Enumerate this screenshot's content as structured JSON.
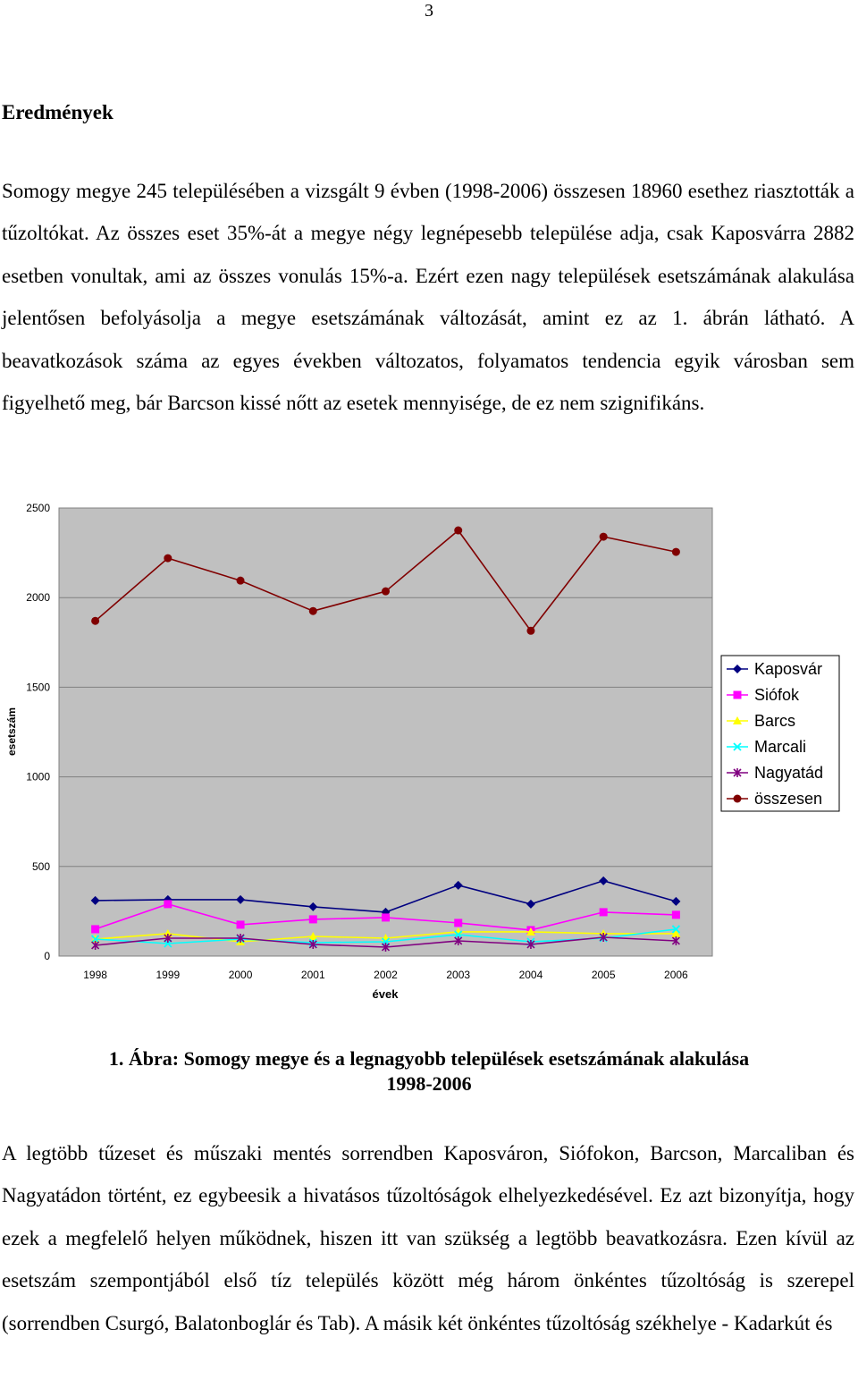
{
  "page": {
    "number": "3",
    "heading": "Eredmények",
    "paragraph1": "Somogy megye 245 településében a vizsgált 9 évben (1998-2006) összesen 18960 esethez riasztották a tűzoltókat. Az összes eset 35%-át a megye négy legnépesebb települése adja, csak Kaposvárra 2882 esetben vonultak, ami az összes vonulás 15%-a. Ezért ezen nagy települések esetszámának alakulása jelentősen befolyásolja a megye esetszámának változását, amint ez az 1. ábrán látható. A beavatkozások száma az egyes években változatos, folyamatos tendencia egyik városban sem figyelhető meg, bár Barcson kissé nőtt az esetek mennyisége, de ez nem szignifikáns.",
    "paragraph2": "A legtöbb tűzeset és műszaki mentés sorrendben Kaposváron, Siófokon, Barcson, Marcaliban és Nagyatádon történt, ez egybeesik a hivatásos tűzoltóságok elhelyezkedésével. Ez azt bizonyítja, hogy ezek a megfelelő helyen működnek, hiszen itt van szükség a legtöbb beavatkozásra. Ezen kívül az esetszám szempontjából első tíz település között még három önkéntes tűzoltóság is szerepel (sorrendben Csurgó, Balatonboglár és Tab). A másik két önkéntes tűzoltóság székhelye - Kadarkút és",
    "caption_line1": "1. Ábra: Somogy megye és a legnagyobb települések esetszámának alakulása",
    "caption_line2": "1998-2006"
  },
  "chart_data": {
    "type": "line",
    "title": "",
    "xlabel": "évek",
    "ylabel": "esetszám",
    "ylim": [
      0,
      2500
    ],
    "yticks": [
      0,
      500,
      1000,
      1500,
      2000,
      2500
    ],
    "categories": [
      "1998",
      "1999",
      "2000",
      "2001",
      "2002",
      "2003",
      "2004",
      "2005",
      "2006"
    ],
    "grid": "horizontal",
    "legend": "right",
    "plot_background": "#c0c0c0",
    "series": [
      {
        "name": "Kaposvár",
        "color": "#000080",
        "marker": "diamond",
        "values": [
          310,
          315,
          315,
          275,
          245,
          395,
          290,
          420,
          305
        ]
      },
      {
        "name": "Siófok",
        "color": "#ff00ff",
        "marker": "square",
        "values": [
          150,
          290,
          175,
          205,
          215,
          185,
          145,
          245,
          230
        ]
      },
      {
        "name": "Barcs",
        "color": "#ffff00",
        "marker": "triangle",
        "values": [
          95,
          125,
          80,
          110,
          100,
          135,
          135,
          125,
          125
        ]
      },
      {
        "name": "Marcali",
        "color": "#00ffff",
        "marker": "x",
        "values": [
          95,
          70,
          95,
          75,
          80,
          120,
          80,
          100,
          150
        ]
      },
      {
        "name": "Nagyatád",
        "color": "#800080",
        "marker": "star",
        "values": [
          60,
          100,
          100,
          65,
          50,
          85,
          65,
          105,
          85
        ]
      },
      {
        "name": "összesen",
        "color": "#800000",
        "marker": "circle",
        "values": [
          1870,
          2220,
          2095,
          1925,
          2035,
          2375,
          1815,
          2340,
          2255
        ]
      }
    ]
  }
}
